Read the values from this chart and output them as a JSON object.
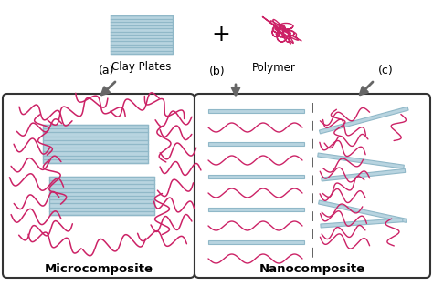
{
  "background_color": "#ffffff",
  "clay_color": "#90b8c8",
  "clay_fill": "#b8d4e0",
  "polymer_color": "#cc2266",
  "arrow_color": "#666666",
  "text_color": "#000000",
  "box_color": "#ffffff",
  "box_edge_color": "#333333",
  "label_a": "(a)",
  "label_b": "(b)",
  "label_c": "(c)",
  "label_clay": "Clay Plates",
  "label_polymer": "Polymer",
  "label_micro": "Microcomposite",
  "label_nano": "Nanocomposite",
  "plus_sign": "+"
}
